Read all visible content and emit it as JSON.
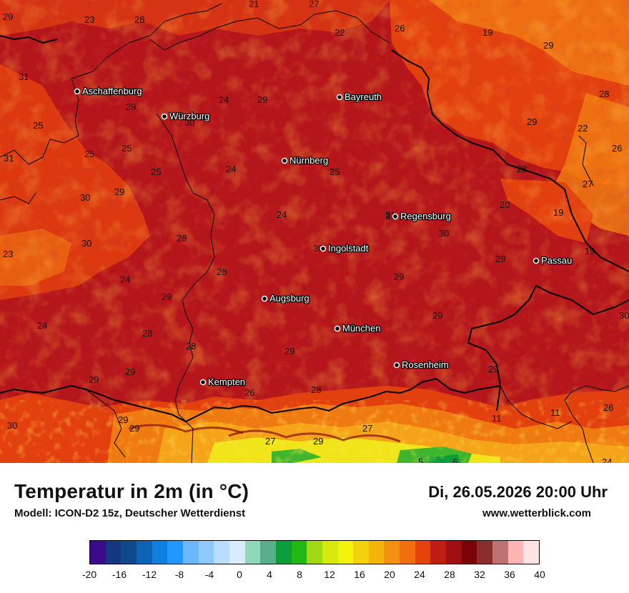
{
  "map": {
    "cities": [
      {
        "name": "Aschaffenburg",
        "val": ""
      },
      {
        "name": "Würzburg",
        "val": ""
      },
      {
        "name": "Bayreuth",
        "val": ""
      },
      {
        "name": "Nürnberg",
        "val": ""
      },
      {
        "name": "Regensburg",
        "val": "31"
      },
      {
        "name": "Ingolstadt",
        "val": "30"
      },
      {
        "name": "Passau",
        "val": ""
      },
      {
        "name": "Augsburg",
        "val": ""
      },
      {
        "name": "München",
        "val": ""
      },
      {
        "name": "Rosenheim",
        "val": ""
      },
      {
        "name": "Kempten",
        "val": ""
      }
    ],
    "temperature_labels": [
      "29",
      "23",
      "28",
      "21",
      "27",
      "22",
      "26",
      "19",
      "29",
      "31",
      "29",
      "24",
      "29",
      "28",
      "25",
      "30",
      "29",
      "22",
      "31",
      "25",
      "25",
      "25",
      "24",
      "25",
      "28",
      "26",
      "30",
      "29",
      "27",
      "20",
      "19",
      "24",
      "31",
      "30",
      "19",
      "23",
      "30",
      "28",
      "28",
      "29",
      "29",
      "24",
      "29",
      "29",
      "30",
      "24",
      "28",
      "28",
      "29",
      "29",
      "29",
      "29",
      "26",
      "28",
      "29",
      "30",
      "29",
      "27",
      "29",
      "27",
      "11",
      "11",
      "26",
      "5",
      "6",
      "24"
    ],
    "colors": {
      "deep": "#b5161b",
      "mid": "#e3400f",
      "warm": "#f07a12",
      "orange": "#f5a41a",
      "yellow": "#f0e51a",
      "green": "#3fb52d",
      "darkred": "#8c0d10"
    }
  },
  "footer": {
    "title": "Temperatur in 2m (in °C)",
    "subtitle": "Modell: ICON-D2 15z, Deutscher Wetterdienst",
    "datetime": "Di, 26.05.2026 20:00 Uhr",
    "website": "www.wetterblick.com"
  },
  "legend": {
    "colors": [
      "#3b0a8a",
      "#16377f",
      "#0e4a8b",
      "#0d63b8",
      "#0f7fe0",
      "#1f98ff",
      "#6bb8ff",
      "#8ec8ff",
      "#b9dcff",
      "#d8ebff",
      "#8fd9b9",
      "#5aae8a",
      "#0d9d3a",
      "#22b814",
      "#a0d814",
      "#d6ea0c",
      "#f3f30c",
      "#f2d20c",
      "#f4b40c",
      "#f38f11",
      "#f06d10",
      "#e5420c",
      "#c11c14",
      "#a10f12",
      "#7a0408",
      "#8a2d2d",
      "#bf7272",
      "#ffb4b4",
      "#ffe2e2"
    ],
    "ticks": [
      "-20",
      "-16",
      "-12",
      "-8",
      "-4",
      "0",
      "4",
      "8",
      "12",
      "16",
      "20",
      "24",
      "28",
      "32",
      "36",
      "40"
    ]
  }
}
